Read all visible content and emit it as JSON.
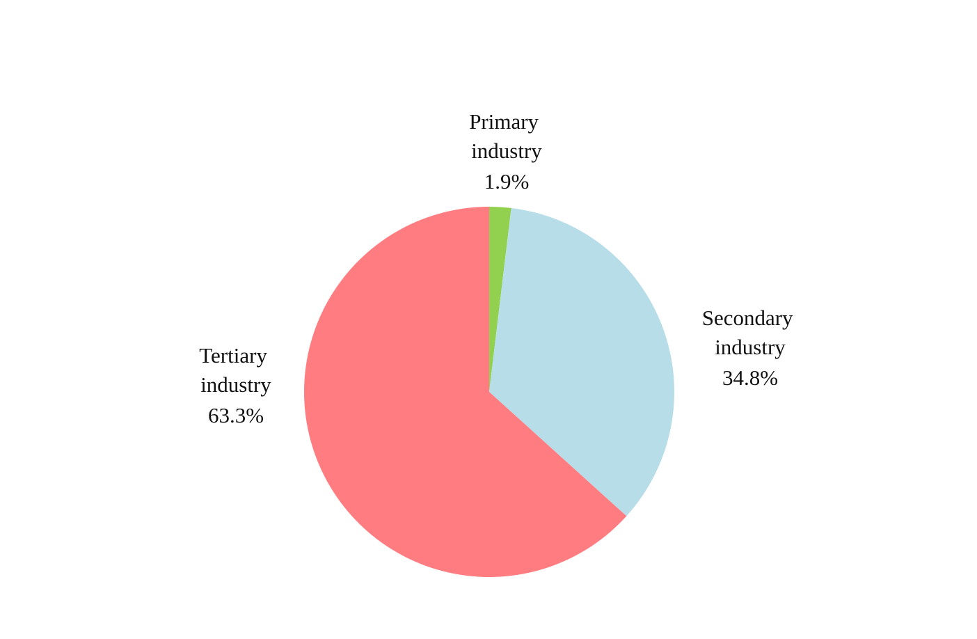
{
  "chart_data": {
    "type": "pie",
    "categories": [
      "Primary industry",
      "Secondary industry",
      "Tertiary industry"
    ],
    "values": [
      1.9,
      34.8,
      63.3
    ],
    "value_labels": [
      "1.9%",
      "34.8%",
      "63.3%"
    ],
    "colors": [
      "#92d050",
      "#b7dde8",
      "#ff7c80"
    ]
  }
}
